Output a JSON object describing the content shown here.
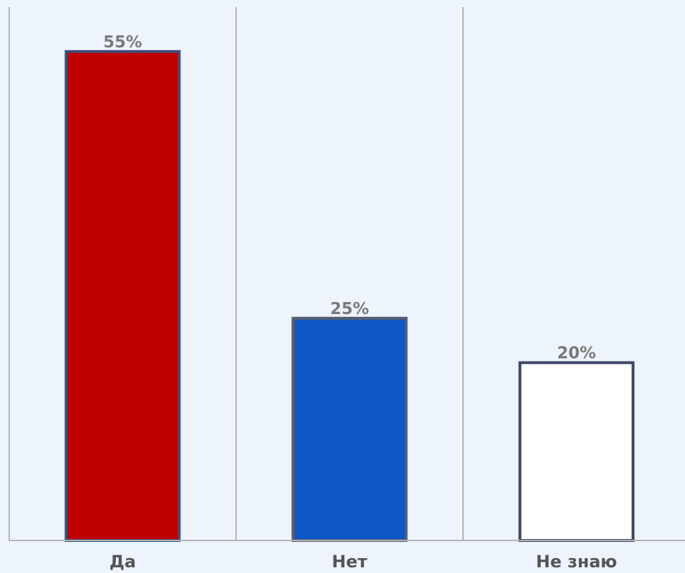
{
  "chart_data": {
    "type": "bar",
    "categories": [
      "Да",
      "Нет",
      "Не знаю"
    ],
    "values": [
      55,
      25,
      20
    ],
    "value_labels": [
      "55%",
      "25%",
      "20%"
    ],
    "ylim": [
      0,
      60
    ],
    "grid": "vertical separators between categories",
    "colors": {
      "background": "#eef4fd",
      "gridline": "#b3b3b3",
      "bar_fills": [
        "#c00000",
        "#0e57c6",
        "#ffffff"
      ],
      "bar_borders": [
        "#3d4d7a",
        "#555e6e",
        "#3d4666"
      ],
      "data_label": "#7a7a7a",
      "category_label": "#555555"
    }
  }
}
